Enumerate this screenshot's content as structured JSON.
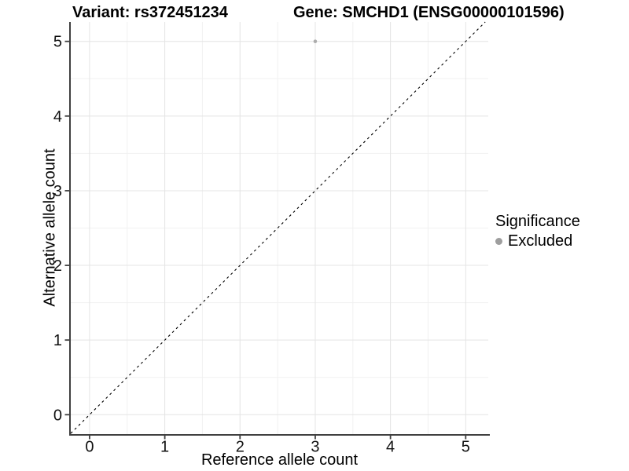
{
  "chart_data": {
    "type": "scatter",
    "title_variant": "Variant: rs372451234",
    "title_gene": "Gene: SMCHD1 (ENSG00000101596)",
    "xlabel": "Reference allele count",
    "ylabel": "Alternative allele count",
    "xticks": [
      0,
      1,
      2,
      3,
      4,
      5
    ],
    "yticks": [
      0,
      1,
      2,
      3,
      4,
      5
    ],
    "minor_ticks": [
      0.5,
      1.5,
      2.5,
      3.5,
      4.5
    ],
    "xlim": [
      -0.25,
      5.3
    ],
    "ylim": [
      -0.26,
      5.26
    ],
    "grid": "major+minor",
    "points": [
      {
        "x": 3,
        "y": 5,
        "series": "Excluded"
      }
    ],
    "reference_line": {
      "kind": "identity",
      "style": "dashed",
      "color": "#000000"
    },
    "legend": {
      "title": "Significance",
      "position": "right",
      "items": [
        {
          "label": "Excluded",
          "color": "#9e9e9e"
        }
      ]
    },
    "colors": {
      "point": "#adadad",
      "grid_major": "#e4e4e4",
      "grid_minor": "#f1f1f1",
      "axis_line": "#404040",
      "tick_text": "#111111"
    }
  }
}
